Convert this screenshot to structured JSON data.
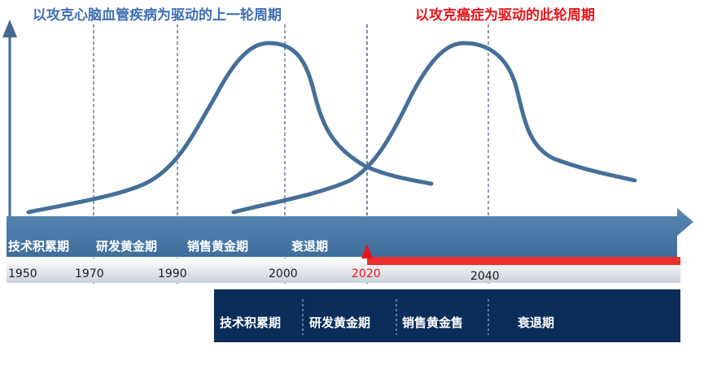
{
  "titles": {
    "previous_cycle": "以攻克心脑血管疾病为驱动的上一轮周期",
    "current_cycle": "以攻克癌症为驱动的此轮周期"
  },
  "top_band_phases": [
    "技术积累期",
    "研发黄金期",
    "销售黄金期",
    "衰退期"
  ],
  "timeline_years": [
    "1950",
    "1970",
    "1990",
    "2000",
    "2020",
    "2040"
  ],
  "current_year_marker": "2020",
  "bottom_band_phases": [
    "技术积累期",
    "研发黄金期",
    "销售黄金售",
    "衰退期"
  ],
  "colors": {
    "title_previous": "#3d6fb3",
    "title_current": "#e8141a",
    "curve": "#456f98",
    "axis": "#46698f",
    "top_band": "#4a7aa7",
    "bottom_band": "#0b2d5a",
    "progress_bar": "#ef2e2e",
    "marker": "#e8141a"
  }
}
